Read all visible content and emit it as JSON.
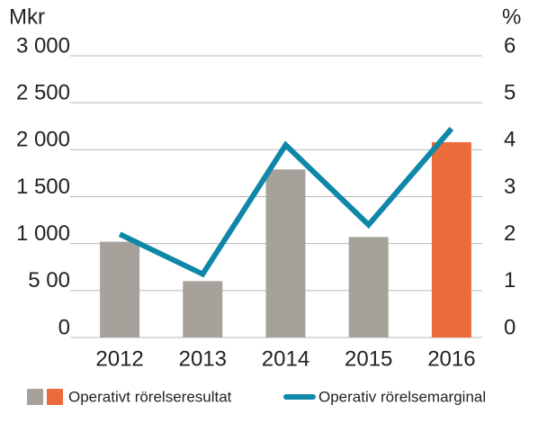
{
  "chart_data": {
    "type": "bar",
    "y_label": "Mkr",
    "y2_label": "%",
    "categories": [
      "2012",
      "2013",
      "2014",
      "2015",
      "2016"
    ],
    "series": [
      {
        "name": "Operativt rörelseresultat",
        "type": "bar",
        "colors": [
          "#a6a29b",
          "#a6a29b",
          "#a6a29b",
          "#a6a29b",
          "#ec6b3b"
        ],
        "values": [
          1020,
          600,
          1790,
          1070,
          2080
        ]
      },
      {
        "name": "Operativ rörelsemarginal",
        "type": "line",
        "axis": "y2",
        "color": "#0f87a8",
        "values": [
          2.2,
          1.35,
          4.1,
          2.4,
          4.45
        ]
      }
    ],
    "ylim": [
      0,
      3000
    ],
    "yticks": [
      0,
      {
        "value": 500,
        "label": "5 00"
      },
      {
        "value": 1000,
        "label": "1 000"
      },
      {
        "value": 1500,
        "label": "1 500"
      },
      {
        "value": 2000,
        "label": "2 000"
      },
      {
        "value": 2500,
        "label": "2 500"
      },
      {
        "value": 3000,
        "label": "3 000"
      }
    ],
    "y2lim": [
      0,
      6
    ],
    "y2ticks": [
      0,
      1,
      2,
      3,
      4,
      5,
      6
    ],
    "grid": true
  }
}
